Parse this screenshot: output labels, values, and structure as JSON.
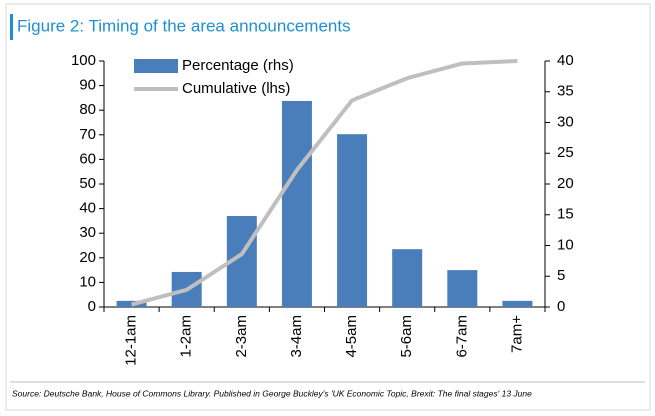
{
  "chart_data": {
    "type": "bar_line",
    "title": "Figure 2: Timing of the area announcements",
    "source": "Source: Deutsche Bank, House of Commons Library. Published in George Buckley's 'UK Economic Topic, Brexit: The final stages' 13 June",
    "categories": [
      "12-1am",
      "1-2am",
      "2-3am",
      "3-4am",
      "4-5am",
      "5-6am",
      "6-7am",
      "7am+"
    ],
    "series": [
      {
        "name": "Percentage (rhs)",
        "type": "bar",
        "axis": "y2",
        "color": "#4a7ebb",
        "values": [
          1.0,
          5.7,
          14.8,
          33.5,
          28.1,
          9.4,
          6.0,
          1.0
        ]
      },
      {
        "name": "Cumulative (lhs)",
        "type": "line",
        "axis": "y",
        "color": "#bfbfbf",
        "values": [
          1,
          7,
          21.5,
          55.7,
          84,
          93,
          99,
          100
        ]
      }
    ],
    "ylim": [
      0,
      100
    ],
    "yticks": [
      0,
      10,
      20,
      30,
      40,
      50,
      60,
      70,
      80,
      90,
      100
    ],
    "y2lim": [
      0,
      40
    ],
    "y2ticks": [
      0,
      5,
      10,
      15,
      20,
      25,
      30,
      35,
      40
    ],
    "legend": "top-left",
    "grid": false
  }
}
